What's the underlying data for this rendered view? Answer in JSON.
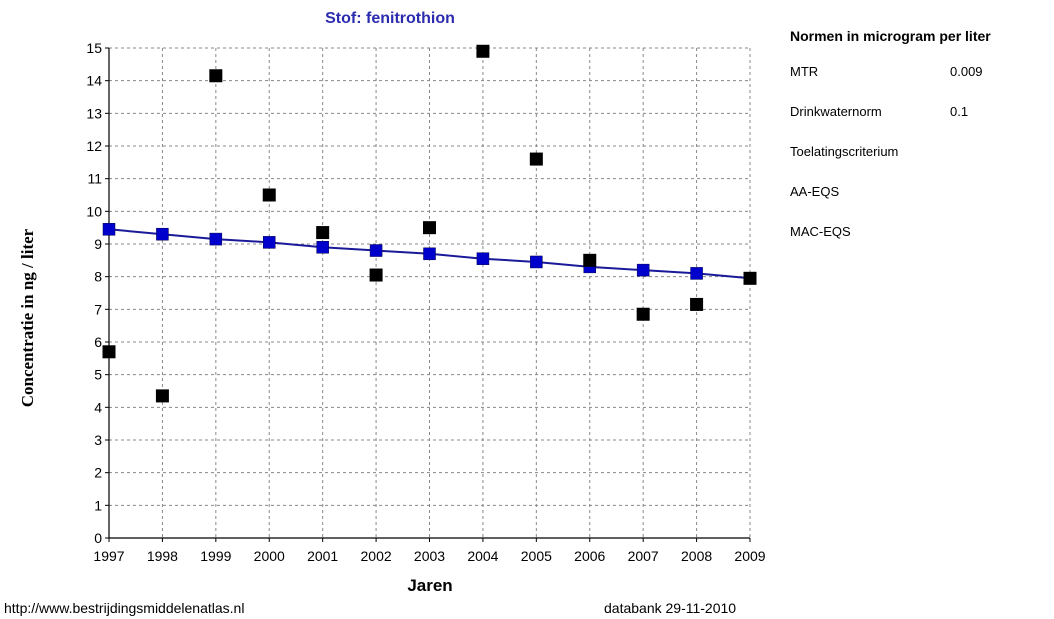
{
  "chart_data": {
    "type": "scatter",
    "title": "Stof: fenitrothion",
    "xlabel": "Jaren",
    "ylabel": "Concentratie in ng / liter",
    "xlim": [
      1997,
      2009
    ],
    "ylim": [
      0,
      15
    ],
    "x_ticks": [
      1997,
      1998,
      1999,
      2000,
      2001,
      2002,
      2003,
      2004,
      2005,
      2006,
      2007,
      2008,
      2009
    ],
    "y_ticks": [
      0,
      1,
      2,
      3,
      4,
      5,
      6,
      7,
      8,
      9,
      10,
      11,
      12,
      13,
      14,
      15
    ],
    "grid": true,
    "series": [
      {
        "points": [
          {
            "x": 1997,
            "y": 5.7
          },
          {
            "x": 1998,
            "y": 4.35
          },
          {
            "x": 1999,
            "y": 14.15
          },
          {
            "x": 2000,
            "y": 10.5
          },
          {
            "x": 2001,
            "y": 9.35
          },
          {
            "x": 2002,
            "y": 8.05
          },
          {
            "x": 2003,
            "y": 9.5
          },
          {
            "x": 2004,
            "y": 14.9
          },
          {
            "x": 2005,
            "y": 11.6
          },
          {
            "x": 2006,
            "y": 8.5
          },
          {
            "x": 2007,
            "y": 6.85
          },
          {
            "x": 2008,
            "y": 7.15
          },
          {
            "x": 2009,
            "y": 7.95
          }
        ],
        "color": "#000000",
        "marker": "square"
      },
      {
        "kind": "trend",
        "points": [
          {
            "x": 1997,
            "y": 9.45
          },
          {
            "x": 1998,
            "y": 9.3
          },
          {
            "x": 1999,
            "y": 9.15
          },
          {
            "x": 2000,
            "y": 9.05
          },
          {
            "x": 2001,
            "y": 8.9
          },
          {
            "x": 2002,
            "y": 8.8
          },
          {
            "x": 2003,
            "y": 8.7
          },
          {
            "x": 2004,
            "y": 8.55
          },
          {
            "x": 2005,
            "y": 8.45
          },
          {
            "x": 2006,
            "y": 8.3
          },
          {
            "x": 2007,
            "y": 8.2
          },
          {
            "x": 2008,
            "y": 8.1
          },
          {
            "x": 2009,
            "y": 7.95
          }
        ],
        "color": "#0000cc",
        "line_color": "#1a1a99",
        "marker": "square"
      }
    ]
  },
  "norms": {
    "title": "Normen in microgram per liter",
    "rows": [
      {
        "name": "MTR",
        "value": "0.009"
      },
      {
        "name": "Drinkwaternorm",
        "value": "0.1"
      },
      {
        "name": "Toelatingscriterium",
        "value": ""
      },
      {
        "name": "AA-EQS",
        "value": ""
      },
      {
        "name": "MAC-EQS",
        "value": ""
      }
    ]
  },
  "footer": {
    "source": "http://www.bestrijdingsmiddelenatlas.nl",
    "databank": "databank 29-11-2010"
  }
}
